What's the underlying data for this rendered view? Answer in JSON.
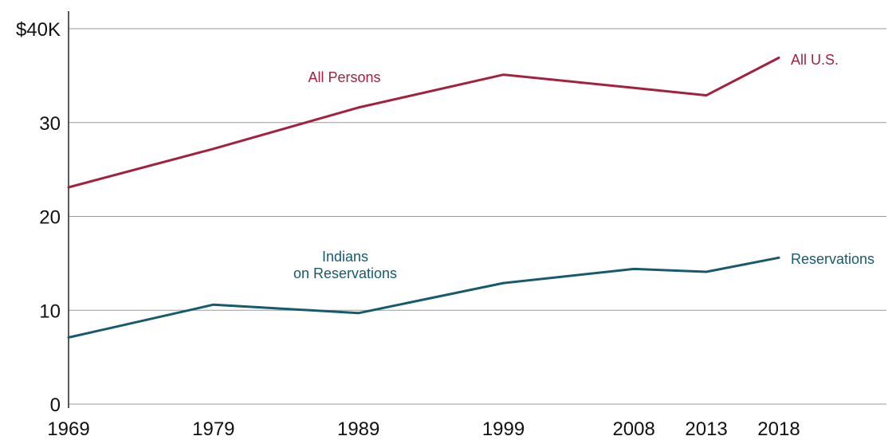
{
  "chart_data": {
    "type": "line",
    "title": "",
    "xlabel": "",
    "ylabel": "",
    "x": [
      1969,
      1979,
      1989,
      1999,
      2008,
      2013,
      2018
    ],
    "xlim": [
      1969,
      2025
    ],
    "ylim": [
      0,
      40
    ],
    "yticks": [
      0,
      10,
      20,
      30,
      40
    ],
    "ytick_labels": [
      "0",
      "10",
      "20",
      "30",
      "$40K"
    ],
    "xtick_labels": [
      "1969",
      "1979",
      "1989",
      "1999",
      "2008",
      "2013",
      "2018"
    ],
    "grid": true,
    "series": [
      {
        "name": "All Persons",
        "end_label": "All U.S.",
        "color": "#a3213f",
        "values": [
          23.1,
          27.2,
          31.6,
          35.1,
          33.7,
          32.9,
          36.9
        ]
      },
      {
        "name": "Indians on Reservations",
        "name_lines": [
          "Indians",
          "on Reservations"
        ],
        "end_label": "Reservations",
        "color": "#175a6e",
        "values": [
          7.1,
          10.6,
          9.7,
          12.9,
          14.4,
          14.1,
          15.6
        ]
      }
    ]
  }
}
